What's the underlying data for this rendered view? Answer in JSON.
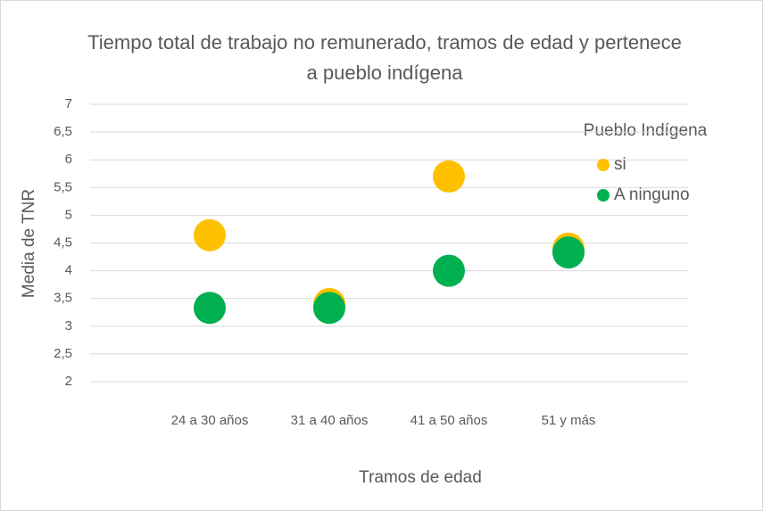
{
  "chart_data": {
    "type": "scatter",
    "title": "Tiempo total de trabajo no remunerado, tramos de edad y pertenece a pueblo indígena",
    "x_label": "Tramos de edad",
    "y_label": "Media de TNR",
    "legend_title": "Pueblo Indígena",
    "legend_position": "right",
    "grid": true,
    "categories": [
      "24 a 30 años",
      "31 a 40 años",
      "41 a 50 años",
      "51 y más"
    ],
    "ylim": [
      2,
      7
    ],
    "yticks": [
      2,
      {
        "value": 2.5,
        "label": "2,5"
      },
      3,
      {
        "value": 3.5,
        "label": "3,5"
      },
      4,
      {
        "value": 4.5,
        "label": "4,5"
      },
      5,
      {
        "value": 5.5,
        "label": "5,5"
      },
      6,
      {
        "value": 6.5,
        "label": "6,5"
      },
      7
    ],
    "series": [
      {
        "name": "si",
        "color": "#FFC000",
        "values": [
          4.64,
          3.4,
          5.7,
          4.4
        ]
      },
      {
        "name": "A ninguno",
        "color": "#00B050",
        "values": [
          3.33,
          3.33,
          4.0,
          4.33
        ]
      }
    ]
  }
}
